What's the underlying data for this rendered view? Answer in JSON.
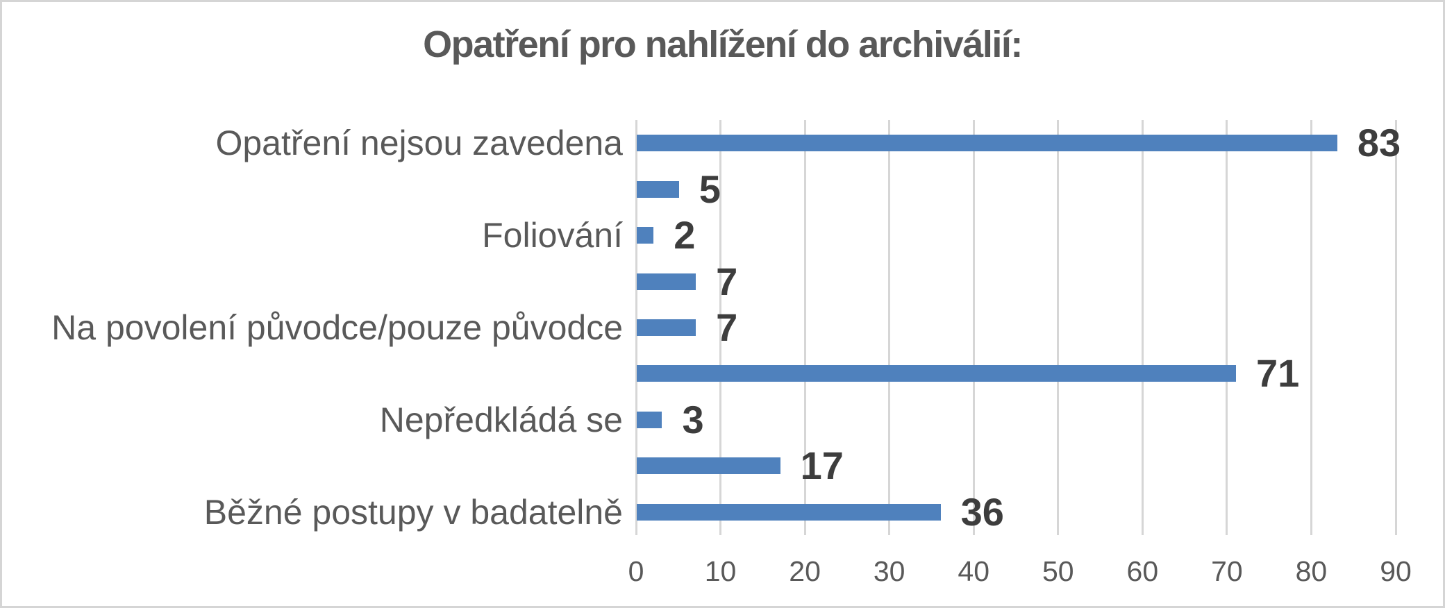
{
  "chart_data": {
    "type": "bar",
    "orientation": "horizontal",
    "title": "Opatření pro nahlížení do archiválií:",
    "categories": [
      "Opatření nejsou zavedena",
      "",
      "Foliování",
      "",
      "Na povolení původce/pouze původce",
      "",
      "Nepředkládá se",
      "",
      "Běžné postupy v badatelně"
    ],
    "values": [
      83,
      5,
      2,
      7,
      7,
      71,
      3,
      17,
      36
    ],
    "data_labels": [
      "83",
      "5",
      "2",
      "7",
      "7",
      "71",
      "3",
      "17",
      "36"
    ],
    "xlabel": "",
    "ylabel": "",
    "xlim": [
      0,
      90
    ],
    "xticks": [
      0,
      10,
      20,
      30,
      40,
      50,
      60,
      70,
      80,
      90
    ],
    "grid": true,
    "legend": false
  },
  "colors": {
    "bar": "#4f81bd",
    "title_text": "#595959",
    "category_text": "#595959",
    "value_text": "#3d3d3d",
    "tick_text": "#595959",
    "gridline": "#d6d6d6",
    "border": "#d5d5d5",
    "background": "#ffffff"
  }
}
